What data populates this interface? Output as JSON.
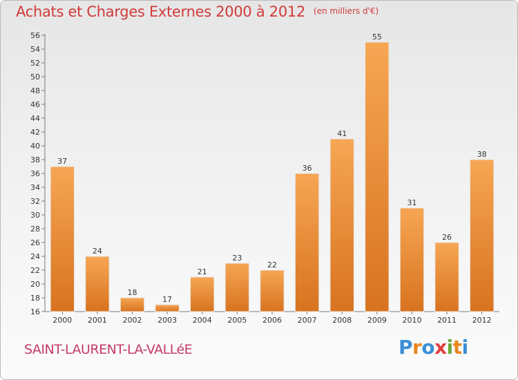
{
  "header": {
    "title": "Achats et Charges Externes 2000 à 2012",
    "unit": "(en milliers d'€)"
  },
  "footer": {
    "place": "SAINT-LAURENT-LA-VALLéE",
    "logo_letters": [
      "P",
      "r",
      "o",
      "x",
      "i",
      "t",
      "i"
    ]
  },
  "colors": {
    "title": "#d23a3a",
    "place": "#c53a6b",
    "bar_top": "#f6a654",
    "bar_bottom": "#d8731f"
  },
  "chart_data": {
    "type": "bar",
    "categories": [
      "2000",
      "2001",
      "2002",
      "2003",
      "2004",
      "2005",
      "2006",
      "2007",
      "2008",
      "2009",
      "2010",
      "2011",
      "2012"
    ],
    "values": [
      37,
      24,
      18,
      17,
      21,
      23,
      22,
      36,
      41,
      55,
      31,
      26,
      38
    ],
    "title": "Achats et Charges Externes 2000 à 2012",
    "ylim": [
      16,
      56
    ],
    "ytick_step": 2,
    "grid": false
  }
}
